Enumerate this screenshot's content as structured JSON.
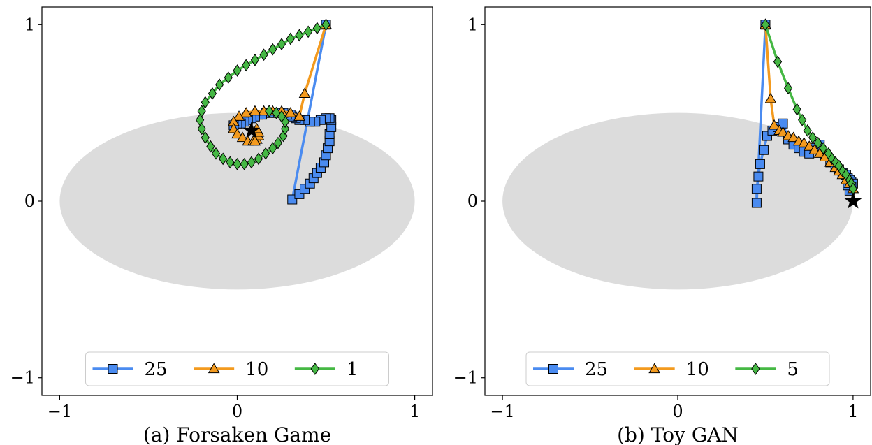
{
  "colors": {
    "blue": "#4a8bf0",
    "orange": "#f39a1e",
    "green": "#45b844",
    "ellipse": "#dcdcdc",
    "star": "#000000"
  },
  "chart_data": [
    {
      "type": "line",
      "title": "(a) Forsaken Game",
      "xlim": [
        -1.1,
        1.1
      ],
      "ylim": [
        -1.1,
        1.1
      ],
      "xticks": [
        -1,
        0,
        1
      ],
      "yticks": [
        -1,
        0,
        1
      ],
      "xtick_labels": [
        "−1",
        "0",
        "1"
      ],
      "ytick_labels": [
        "−1",
        "0",
        "1"
      ],
      "grid": false,
      "legend_position": "lower-center",
      "shaded_region": {
        "shape": "ellipse",
        "center": [
          0,
          0
        ],
        "radii": [
          1.0,
          0.5
        ]
      },
      "target_point": [
        0.08,
        0.4
      ],
      "series": [
        {
          "name": "25",
          "marker": "square",
          "color": "blue",
          "x": [
            0.5,
            0.31,
            0.35,
            0.38,
            0.41,
            0.43,
            0.45,
            0.47,
            0.49,
            0.5,
            0.51,
            0.52,
            0.52,
            0.53,
            0.53,
            0.52,
            0.5,
            0.47,
            0.44,
            0.41,
            0.38,
            0.35,
            0.33,
            0.31,
            0.3,
            0.28,
            0.26,
            0.24,
            0.22,
            0.2,
            0.18,
            0.16,
            0.14,
            0.12,
            0.1,
            0.08,
            0.06,
            0.04,
            0.02,
            0.0,
            -0.02
          ],
          "y": [
            1.0,
            0.01,
            0.04,
            0.07,
            0.1,
            0.13,
            0.16,
            0.19,
            0.22,
            0.26,
            0.3,
            0.34,
            0.38,
            0.42,
            0.46,
            0.47,
            0.47,
            0.46,
            0.45,
            0.45,
            0.46,
            0.46,
            0.47,
            0.48,
            0.49,
            0.49,
            0.5,
            0.5,
            0.5,
            0.5,
            0.5,
            0.5,
            0.49,
            0.49,
            0.48,
            0.47,
            0.46,
            0.45,
            0.44,
            0.44,
            0.43
          ]
        },
        {
          "name": "10",
          "marker": "triangle",
          "color": "orange",
          "x": [
            0.5,
            0.38,
            0.35,
            0.3,
            0.25,
            0.2,
            0.15,
            0.1,
            0.05,
            0.01,
            -0.02,
            -0.02,
            0.0,
            0.03,
            0.06,
            0.09,
            0.11,
            0.12,
            0.12,
            0.11,
            0.1
          ],
          "y": [
            1.0,
            0.61,
            0.48,
            0.5,
            0.51,
            0.51,
            0.51,
            0.51,
            0.5,
            0.48,
            0.45,
            0.41,
            0.38,
            0.36,
            0.34,
            0.34,
            0.35,
            0.37,
            0.39,
            0.41,
            0.34
          ]
        },
        {
          "name": "1",
          "marker": "diamond",
          "color": "green",
          "x": [
            0.5,
            0.45,
            0.4,
            0.35,
            0.3,
            0.25,
            0.2,
            0.15,
            0.1,
            0.05,
            0.0,
            -0.05,
            -0.1,
            -0.14,
            -0.18,
            -0.2,
            -0.21,
            -0.2,
            -0.18,
            -0.15,
            -0.12,
            -0.08,
            -0.04,
            0.0,
            0.04,
            0.08,
            0.12,
            0.16,
            0.2,
            0.23,
            0.26,
            0.27,
            0.27,
            0.25,
            0.22,
            0.18
          ],
          "y": [
            1.0,
            0.98,
            0.96,
            0.94,
            0.92,
            0.89,
            0.86,
            0.83,
            0.8,
            0.77,
            0.74,
            0.7,
            0.66,
            0.61,
            0.56,
            0.51,
            0.46,
            0.41,
            0.36,
            0.31,
            0.27,
            0.24,
            0.22,
            0.21,
            0.21,
            0.22,
            0.24,
            0.27,
            0.3,
            0.33,
            0.37,
            0.41,
            0.45,
            0.48,
            0.5,
            0.51
          ]
        }
      ]
    },
    {
      "type": "line",
      "title": "(b) Toy GAN",
      "xlim": [
        -1.1,
        1.1
      ],
      "ylim": [
        -1.1,
        1.1
      ],
      "xticks": [
        -1,
        0,
        1
      ],
      "yticks": [
        -1,
        0,
        1
      ],
      "xtick_labels": [
        "−1",
        "0",
        "1"
      ],
      "ytick_labels": [
        "−1",
        "0",
        "1"
      ],
      "grid": false,
      "legend_position": "lower-center",
      "shaded_region": {
        "shape": "ellipse",
        "center": [
          0,
          0
        ],
        "radii": [
          1.0,
          0.5
        ]
      },
      "target_point": [
        1.0,
        0.0
      ],
      "series": [
        {
          "name": "25",
          "marker": "square",
          "color": "blue",
          "x": [
            0.5,
            0.45,
            0.45,
            0.46,
            0.47,
            0.49,
            0.51,
            0.54,
            0.57,
            0.6,
            0.63,
            0.66,
            0.69,
            0.72,
            0.75,
            0.78,
            0.81,
            0.84,
            0.87,
            0.9,
            0.92,
            0.94,
            0.96,
            0.97,
            0.98,
            0.99,
            1.0,
            0.99,
            0.98,
            0.97
          ],
          "y": [
            1.0,
            -0.01,
            0.07,
            0.14,
            0.21,
            0.29,
            0.37,
            0.4,
            0.42,
            0.44,
            0.35,
            0.32,
            0.3,
            0.28,
            0.27,
            0.3,
            0.32,
            0.26,
            0.22,
            0.2,
            0.18,
            0.16,
            0.15,
            0.13,
            0.12,
            0.11,
            0.1,
            0.08,
            0.06,
            0.09
          ]
        },
        {
          "name": "10",
          "marker": "triangle",
          "color": "orange",
          "x": [
            0.5,
            0.53,
            0.55,
            0.58,
            0.6,
            0.63,
            0.66,
            0.69,
            0.72,
            0.75,
            0.78,
            0.81,
            0.84,
            0.87,
            0.9,
            0.92,
            0.94,
            0.96,
            0.98,
            1.0
          ],
          "y": [
            1.0,
            0.58,
            0.43,
            0.4,
            0.39,
            0.37,
            0.36,
            0.34,
            0.33,
            0.31,
            0.29,
            0.27,
            0.25,
            0.22,
            0.19,
            0.17,
            0.15,
            0.12,
            0.1,
            0.07
          ]
        },
        {
          "name": "5",
          "marker": "diamond",
          "color": "green",
          "x": [
            0.5,
            0.57,
            0.63,
            0.68,
            0.71,
            0.74,
            0.77,
            0.8,
            0.83,
            0.86,
            0.88,
            0.9,
            0.92,
            0.94,
            0.96,
            0.98,
            0.99,
            1.0
          ],
          "y": [
            1.0,
            0.79,
            0.64,
            0.52,
            0.46,
            0.4,
            0.36,
            0.33,
            0.3,
            0.27,
            0.24,
            0.22,
            0.2,
            0.17,
            0.15,
            0.12,
            0.1,
            0.07
          ]
        }
      ]
    }
  ]
}
